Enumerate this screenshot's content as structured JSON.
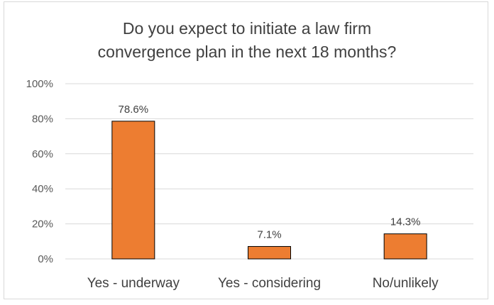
{
  "chart_data": {
    "type": "bar",
    "title_lines": [
      "Do you expect to initiate  a law firm",
      "convergence plan in the next 18 months?"
    ],
    "categories": [
      "Yes - underway",
      "Yes - considering",
      "No/unlikely"
    ],
    "values": [
      78.6,
      7.1,
      14.3
    ],
    "data_labels": [
      "78.6%",
      "7.1%",
      "14.3%"
    ],
    "y_ticks": [
      0,
      20,
      40,
      60,
      80,
      100
    ],
    "y_tick_labels": [
      "0%",
      "20%",
      "40%",
      "60%",
      "80%",
      "100%"
    ],
    "ylim": [
      0,
      100
    ],
    "xlabel": "",
    "ylabel": "",
    "grid": true,
    "legend": "none",
    "bar_color": "#ED7D31",
    "bar_edge_color": "#000000"
  }
}
